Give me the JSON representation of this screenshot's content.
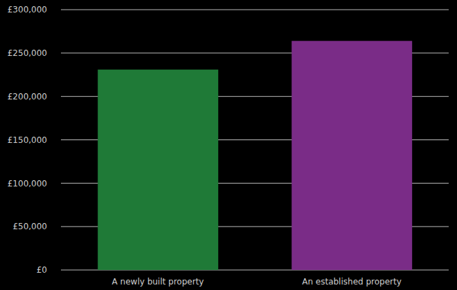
{
  "chart_data": {
    "type": "bar",
    "categories": [
      "A newly built property",
      "An established property"
    ],
    "values": [
      231000,
      264000
    ],
    "colors": [
      "#1f7a37",
      "#7a2c87"
    ],
    "ylim": [
      0,
      300000
    ],
    "yticks": [
      {
        "value": 0,
        "label": "£0"
      },
      {
        "value": 50000,
        "label": "£50,000"
      },
      {
        "value": 100000,
        "label": "£100,000"
      },
      {
        "value": 150000,
        "label": "£150,000"
      },
      {
        "value": 200000,
        "label": "£200,000"
      },
      {
        "value": 250000,
        "label": "£250,000"
      },
      {
        "value": 300000,
        "label": "£300,000"
      }
    ],
    "grid": true
  }
}
